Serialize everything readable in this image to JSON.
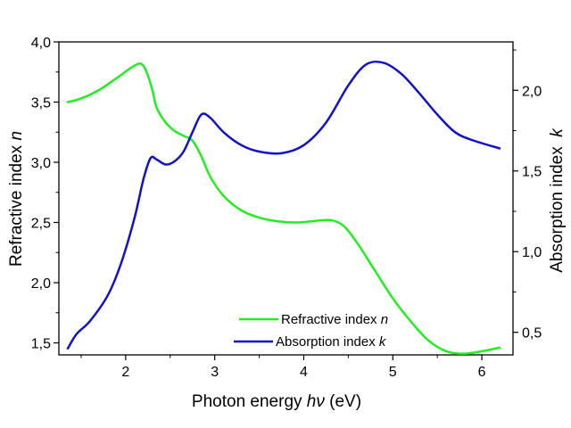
{
  "chart_data": {
    "type": "line",
    "title": "",
    "xlabel": {
      "main": "Photon energy ",
      "italic": "hν",
      "suffix": " (eV)"
    },
    "ylabel_left": {
      "main": "Refractive index ",
      "italic": "n"
    },
    "ylabel_right": {
      "main": "Absorption index  ",
      "italic": "k"
    },
    "xlim": [
      1.25,
      6.35
    ],
    "ylim_left": [
      1.4,
      4.0
    ],
    "ylim_right": [
      0.36,
      2.3
    ],
    "x_ticks": [
      2,
      3,
      4,
      5,
      6
    ],
    "x_tick_labels": [
      "2",
      "3",
      "4",
      "5",
      "6"
    ],
    "y_left_ticks": [
      1.5,
      2.0,
      2.5,
      3.0,
      3.5,
      4.0
    ],
    "y_left_tick_labels": [
      "1,5",
      "2,0",
      "2,5",
      "3,0",
      "3,5",
      "4,0"
    ],
    "y_right_ticks": [
      0.5,
      1.0,
      1.5,
      2.0
    ],
    "y_right_tick_labels": [
      "0,5",
      "1,0",
      "1,5",
      "2,0"
    ],
    "grid": false,
    "legend_position": "bottom-right",
    "series": [
      {
        "name": "Refractive index n",
        "legend_main": "Refractive index ",
        "legend_italic": "n",
        "axis": "left",
        "color": "#22ee22",
        "x": [
          1.35,
          1.5,
          1.7,
          1.9,
          2.05,
          2.15,
          2.2,
          2.25,
          2.3,
          2.35,
          2.45,
          2.55,
          2.65,
          2.75,
          2.85,
          2.95,
          3.1,
          3.3,
          3.5,
          3.7,
          3.9,
          4.1,
          4.3,
          4.45,
          4.6,
          4.8,
          5.0,
          5.2,
          5.4,
          5.6,
          5.8,
          6.0,
          6.2
        ],
        "y": [
          3.5,
          3.53,
          3.6,
          3.7,
          3.78,
          3.82,
          3.8,
          3.72,
          3.6,
          3.45,
          3.33,
          3.26,
          3.22,
          3.18,
          3.05,
          2.88,
          2.72,
          2.6,
          2.54,
          2.51,
          2.5,
          2.51,
          2.52,
          2.47,
          2.33,
          2.1,
          1.87,
          1.68,
          1.52,
          1.43,
          1.41,
          1.43,
          1.46
        ]
      },
      {
        "name": "Absorption index k",
        "legend_main": "Absorption index ",
        "legend_italic": "k",
        "axis": "right",
        "color": "#1111cc",
        "x": [
          1.35,
          1.45,
          1.6,
          1.8,
          1.95,
          2.1,
          2.2,
          2.28,
          2.35,
          2.45,
          2.55,
          2.65,
          2.75,
          2.85,
          2.95,
          3.1,
          3.3,
          3.5,
          3.75,
          4.0,
          4.25,
          4.5,
          4.7,
          4.9,
          5.1,
          5.3,
          5.5,
          5.7,
          5.9,
          6.2
        ],
        "y": [
          0.4,
          0.49,
          0.57,
          0.73,
          0.93,
          1.21,
          1.45,
          1.58,
          1.57,
          1.54,
          1.56,
          1.62,
          1.74,
          1.85,
          1.83,
          1.74,
          1.66,
          1.62,
          1.61,
          1.66,
          1.8,
          2.03,
          2.16,
          2.17,
          2.1,
          1.98,
          1.85,
          1.74,
          1.69,
          1.64
        ]
      }
    ]
  }
}
